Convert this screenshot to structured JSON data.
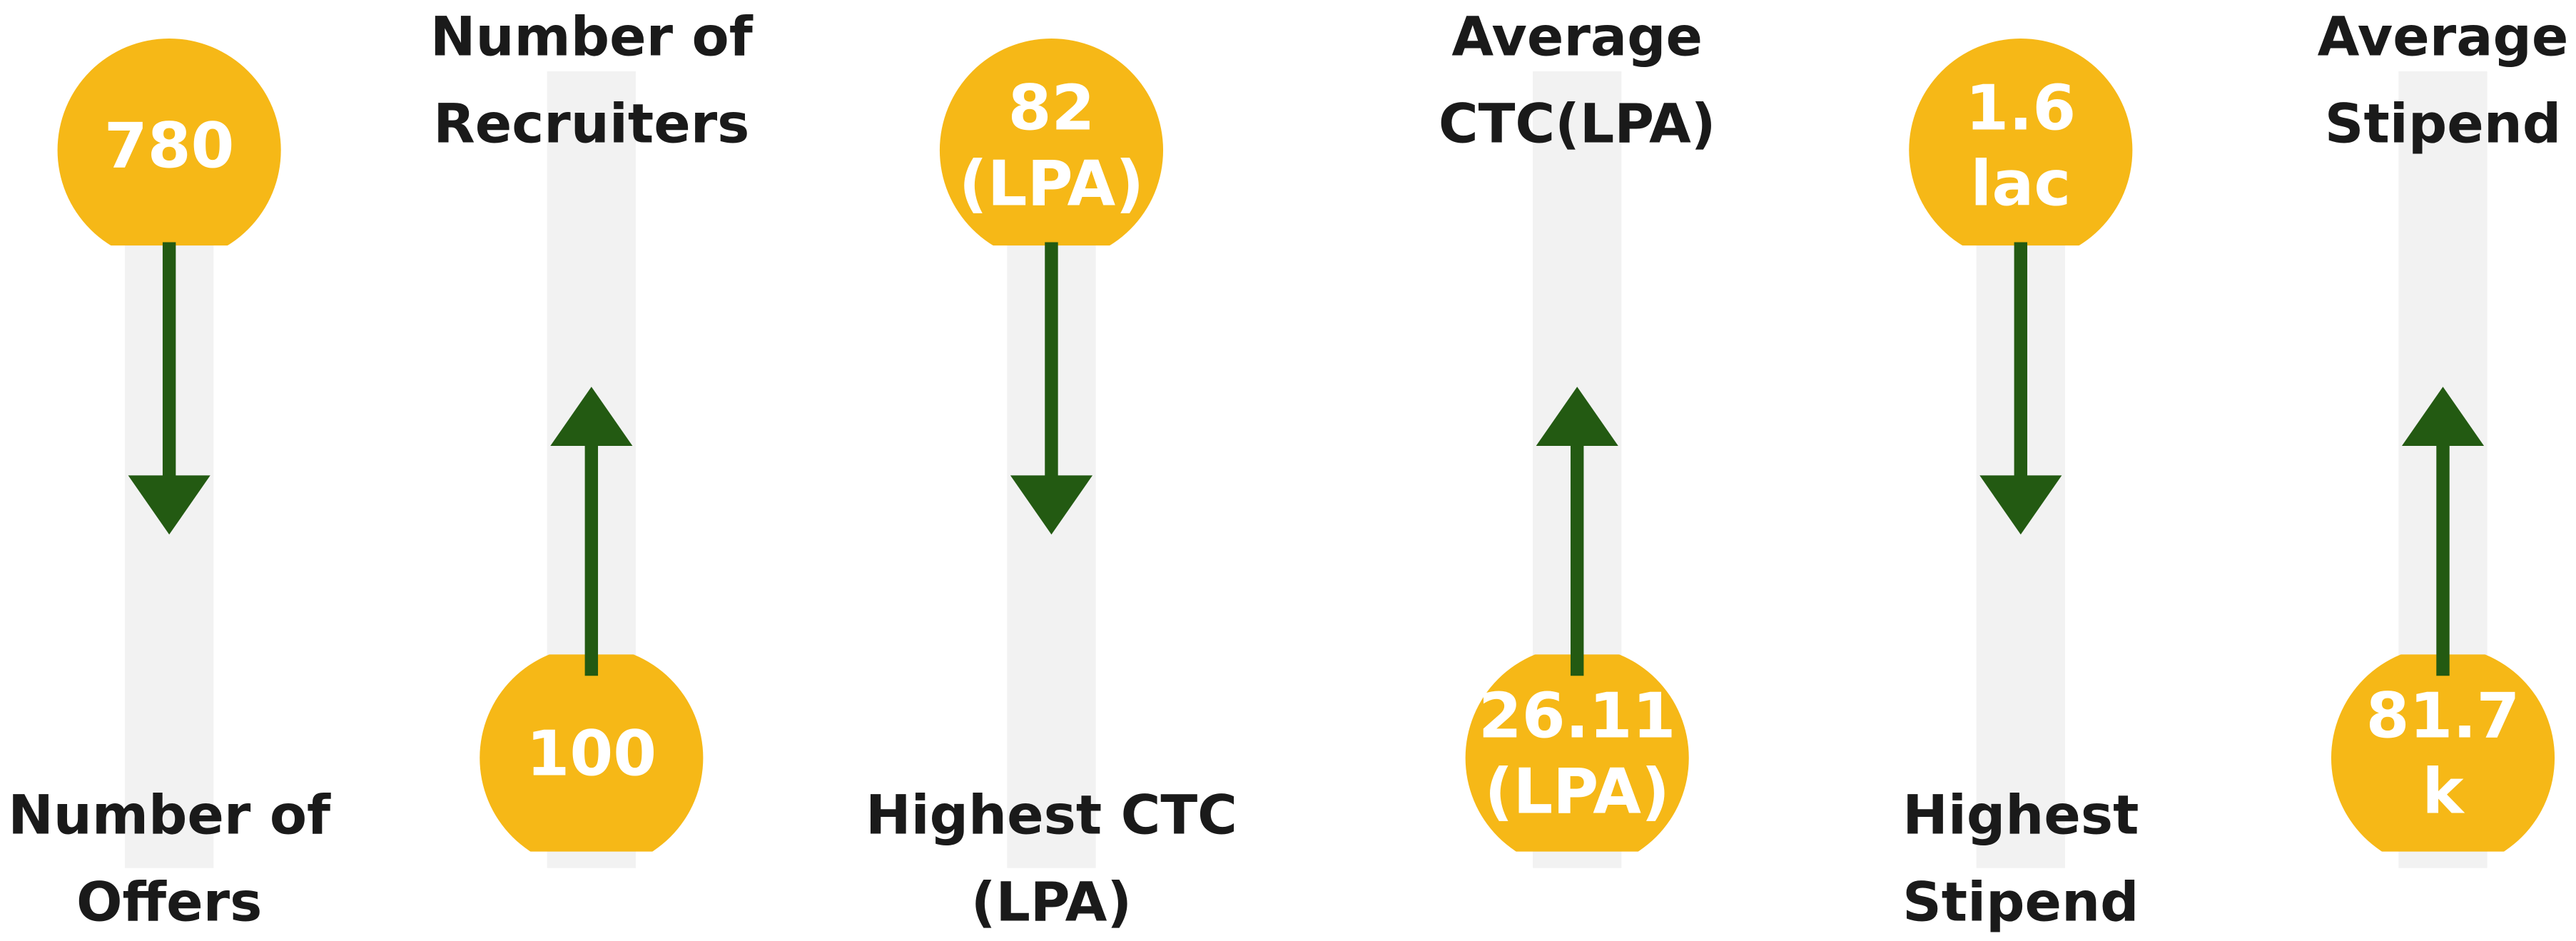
{
  "items": [
    {
      "value": [
        "780"
      ],
      "label": [
        "Number of",
        "Offers"
      ]
    },
    {
      "value": [
        "100"
      ],
      "label": [
        "Number of",
        "Recruiters"
      ]
    },
    {
      "value": [
        "82",
        "(LPA)"
      ],
      "label": [
        "Highest CTC",
        "(LPA)"
      ]
    },
    {
      "value": [
        "26.11",
        "(LPA)"
      ],
      "label": [
        "Average",
        "CTC(LPA)"
      ]
    },
    {
      "value": [
        "1.6",
        "lac"
      ],
      "label": [
        "Highest",
        "Stipend"
      ]
    },
    {
      "value": [
        "81.7",
        "k"
      ],
      "label": [
        "Average",
        "Stipend"
      ]
    }
  ]
}
